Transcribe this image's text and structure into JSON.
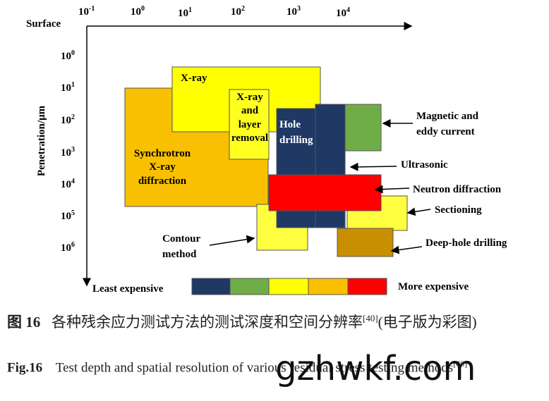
{
  "figure": {
    "x_axis_label": "Surface",
    "y_axis_label": "Penetration/μm",
    "x_ticks": [
      {
        "base": "10",
        "exp": "-1"
      },
      {
        "base": "10",
        "exp": "0"
      },
      {
        "base": "10",
        "exp": "1"
      },
      {
        "base": "10",
        "exp": "2"
      },
      {
        "base": "10",
        "exp": "3"
      },
      {
        "base": "10",
        "exp": "4"
      }
    ],
    "y_ticks": [
      {
        "base": "10",
        "exp": "0"
      },
      {
        "base": "10",
        "exp": "1"
      },
      {
        "base": "10",
        "exp": "2"
      },
      {
        "base": "10",
        "exp": "3"
      },
      {
        "base": "10",
        "exp": "4"
      },
      {
        "base": "10",
        "exp": "5"
      },
      {
        "base": "10",
        "exp": "6"
      }
    ],
    "methods": {
      "synchrotron": [
        "Synchrotron",
        "X-ray",
        "diffraction"
      ],
      "xray": "X-ray",
      "layer_removal": [
        "X-ray",
        "and",
        "layer",
        "removal"
      ],
      "hole_drilling": [
        "Hole",
        "drilling"
      ],
      "magnetic": [
        "Magnetic and",
        "eddy current"
      ],
      "ultrasonic": "Ultrasonic",
      "neutron": "Neutron diffraction",
      "sectioning": "Sectioning",
      "deep_hole": "Deep-hole drilling",
      "contour": [
        "Contour",
        "method"
      ]
    },
    "cost_low": "Least expensive",
    "cost_high": "More expensive"
  },
  "caption": {
    "cn_label": "图 16",
    "cn_text": "各种残余应力测试方法的测试深度和空间分辨率",
    "cn_ref": "[40]",
    "cn_suffix": "(电子版为彩图)",
    "en_label": "Fig.16",
    "en_text": "Test depth and spatial resolution of various residual stress testing methods",
    "en_ref": "[40]"
  },
  "watermark": "gzhwkf.com"
}
